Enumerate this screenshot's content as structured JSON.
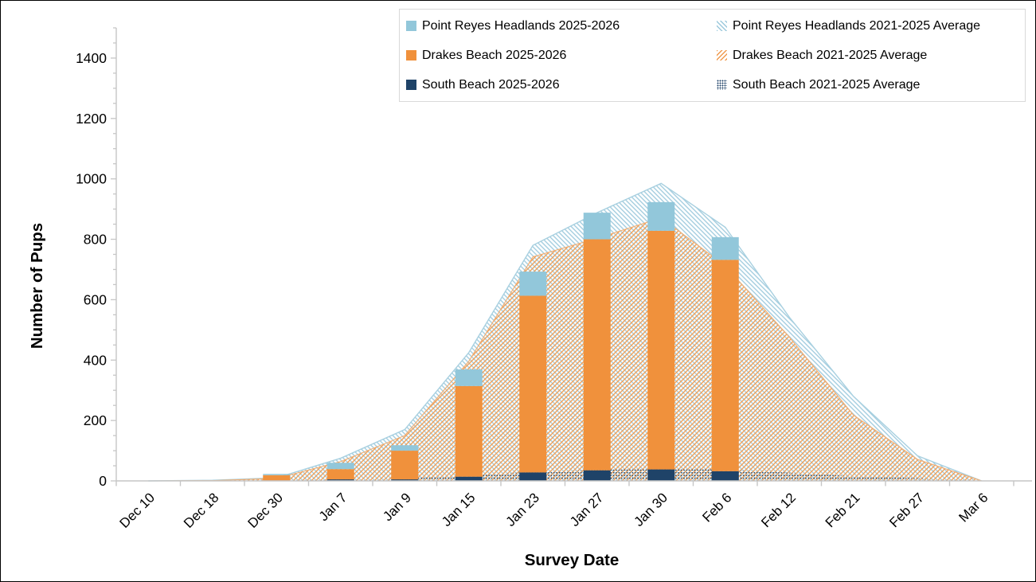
{
  "frame": {
    "background": "#FFFFFF",
    "border_color": "#000000"
  },
  "chart_data": {
    "type": "bar",
    "subtype": "stacked bars (2025-2026 season) drawn over stacked hatched areas (2021-2025 averages)",
    "title": "",
    "xlabel": "Survey Date",
    "ylabel": "Number of Pups",
    "ylim": [
      0,
      1500
    ],
    "ytick_labeled": [
      0,
      200,
      400,
      600,
      800,
      1000,
      1200,
      1400
    ],
    "ytick_minor_step": 50,
    "grid": false,
    "legend_position": "top-right",
    "categories": [
      "Dec 10",
      "Dec 18",
      "Dec 30",
      "Jan 7",
      "Jan 9",
      "Jan 15",
      "Jan 23",
      "Jan 27",
      "Jan 30",
      "Feb 6",
      "Feb 12",
      "Feb 21",
      "Feb 27",
      "Mar 6"
    ],
    "bar_series": [
      {
        "name": "South Beach 2025-2026",
        "color": "#1F4368",
        "values": [
          0,
          0,
          1,
          5,
          5,
          14,
          28,
          35,
          38,
          32,
          0,
          0,
          0,
          0
        ]
      },
      {
        "name": "Drakes Beach 2025-2026",
        "color": "#F0913C",
        "values": [
          0,
          0,
          18,
          34,
          95,
          300,
          585,
          765,
          790,
          700,
          0,
          0,
          0,
          0
        ]
      },
      {
        "name": "Point Reyes Headlands 2025-2026",
        "color": "#92C7DA",
        "values": [
          0,
          0,
          4,
          21,
          18,
          55,
          80,
          88,
          95,
          75,
          0,
          0,
          0,
          0
        ]
      }
    ],
    "area_series": [
      {
        "name": "South Beach 2021-2025 Average",
        "color": "#1F4368",
        "pattern": "dots",
        "values": [
          0,
          0,
          1,
          5,
          8,
          18,
          30,
          37,
          39,
          38,
          27,
          15,
          9,
          0
        ]
      },
      {
        "name": "Drakes Beach 2021-2025 Average",
        "color": "#F09A4D",
        "pattern": "diagonal-forward",
        "values": [
          0,
          1,
          7,
          59,
          142,
          378,
          712,
          766,
          832,
          674,
          449,
          203,
          62,
          0
        ]
      },
      {
        "name": "Point Reyes Headlands 2021-2025 Average",
        "color": "#9CC9DC",
        "pattern": "diagonal-back",
        "values": [
          0,
          1,
          2,
          11,
          20,
          29,
          38,
          85,
          114,
          128,
          66,
          62,
          12,
          0
        ]
      }
    ],
    "stacking_order_bottom_to_top": [
      "South Beach",
      "Drakes Beach",
      "Point Reyes Headlands"
    ],
    "axis_color": "#C6C6C6",
    "text_color": "#000000"
  },
  "legend": {
    "items": [
      {
        "label": "Point Reyes Headlands 2025-2026",
        "style": "solid",
        "color": "#92C7DA"
      },
      {
        "label": "Point Reyes Headlands 2021-2025 Average",
        "style": "hatch-back",
        "color": "#9CC9DC"
      },
      {
        "label": "Drakes Beach 2025-2026",
        "style": "solid",
        "color": "#F0913C"
      },
      {
        "label": "Drakes Beach 2021-2025 Average",
        "style": "hatch-forward",
        "color": "#F09A4D"
      },
      {
        "label": "South Beach 2025-2026",
        "style": "solid",
        "color": "#1F4368"
      },
      {
        "label": "South Beach 2021-2025 Average",
        "style": "dots",
        "color": "#1F4368"
      }
    ]
  }
}
